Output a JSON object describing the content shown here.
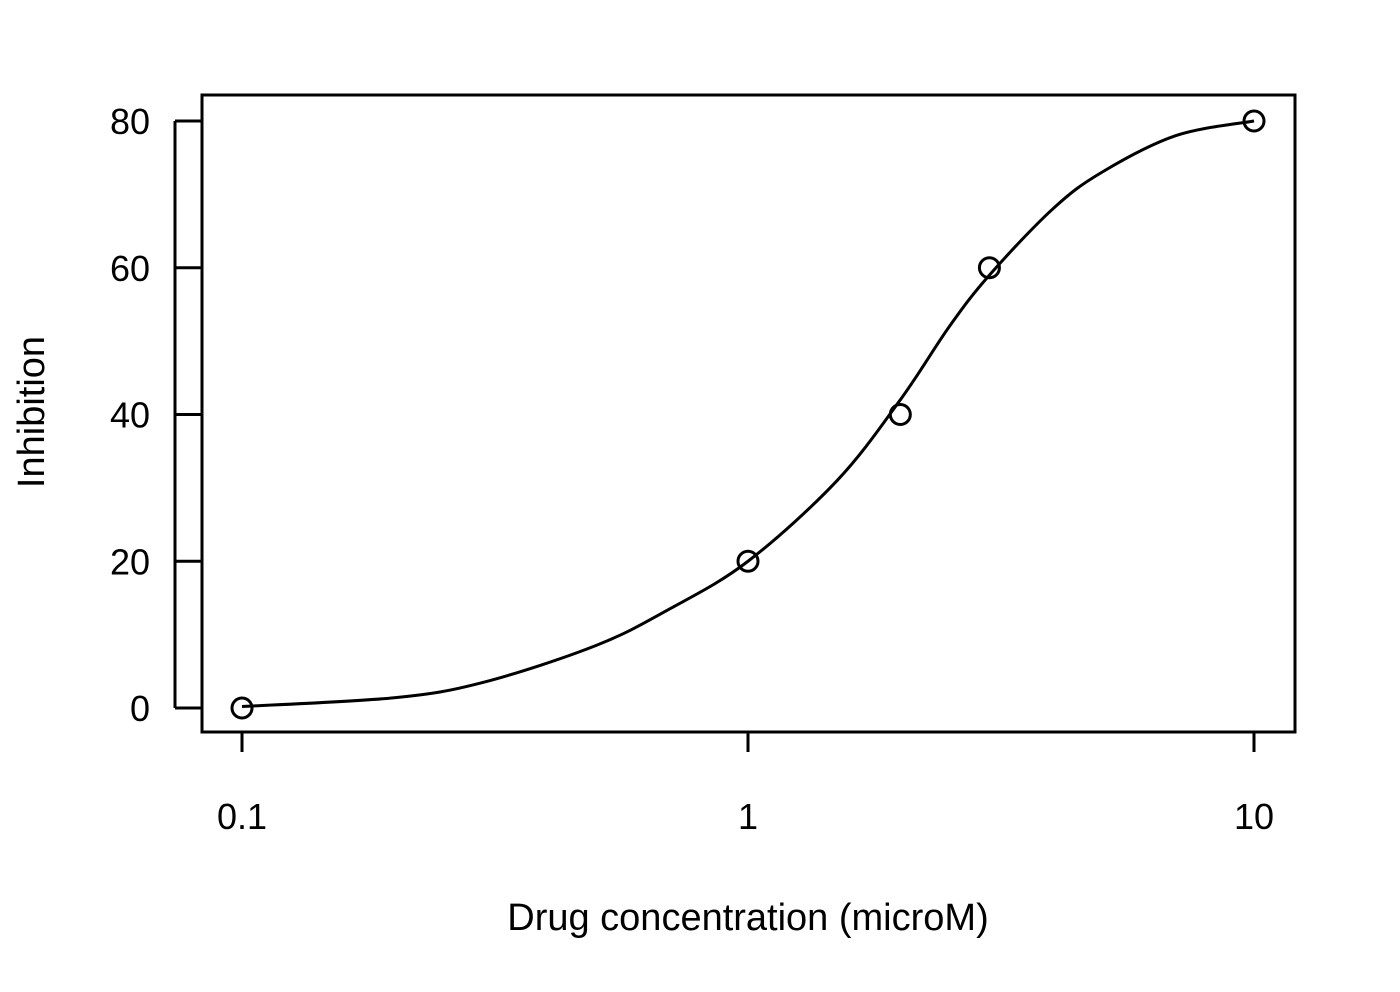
{
  "chart_data": {
    "type": "scatter",
    "xscale": "log",
    "x": [
      0.1,
      1,
      2,
      3,
      10
    ],
    "y": [
      0,
      20,
      40,
      60,
      80
    ],
    "xlim": [
      0.08,
      12
    ],
    "ylim": [
      -3.2,
      83.5
    ],
    "xticks": [
      0.1,
      1,
      10
    ],
    "xtick_labels": [
      "0.1",
      "1",
      "10"
    ],
    "yticks": [
      0,
      20,
      40,
      60,
      80
    ],
    "ytick_labels": [
      "0",
      "20",
      "40",
      "60",
      "80"
    ],
    "xlabel": "Drug concentration (microM)",
    "ylabel": "Inhibition",
    "grid": false,
    "fit_curve": {
      "model": "logistic",
      "x": [
        0.1,
        0.2,
        0.3,
        0.5,
        0.7,
        1,
        1.5,
        2,
        2.5,
        3,
        4,
        5,
        7,
        10
      ],
      "y": [
        0.2,
        1.4,
        3.5,
        8.5,
        13.5,
        20,
        31,
        42,
        52,
        59,
        68,
        73,
        78,
        80
      ]
    },
    "colors": {
      "line": "#000000",
      "background": "#ffffff"
    }
  }
}
